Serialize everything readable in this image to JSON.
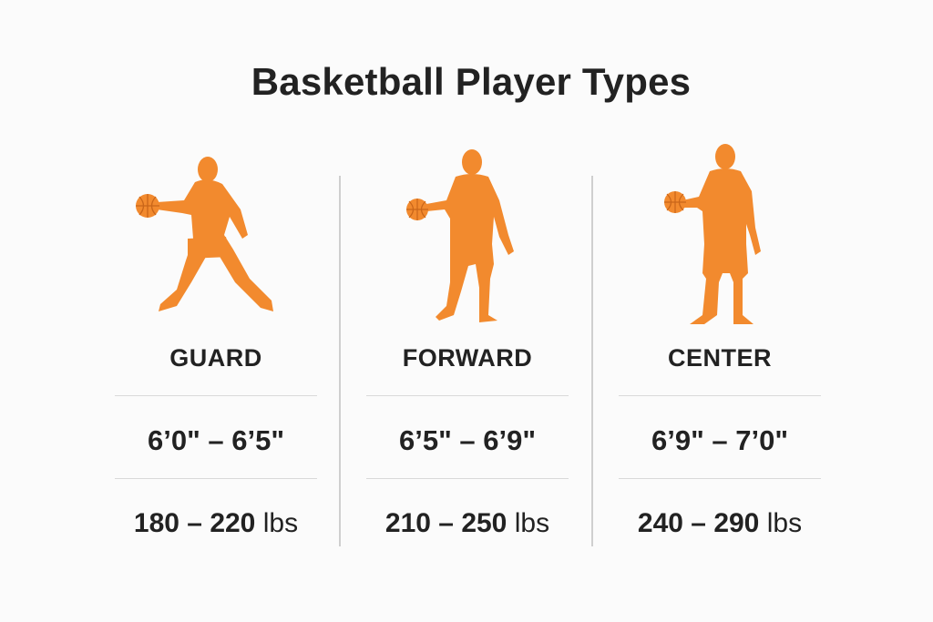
{
  "title": "Basketball Player Types",
  "colors": {
    "silhouette": "#f28a2e",
    "text": "#222222",
    "divider": "#cfcfcf"
  },
  "positions": [
    {
      "name": "GUARD",
      "height_range": "6’0\" – 6’5\"",
      "weight_range": "180 – 220",
      "weight_unit": "lbs",
      "icon": "dribbling-player-icon"
    },
    {
      "name": "FORWARD",
      "height_range": "6’5\" – 6’9\"",
      "weight_range": "210 – 250",
      "weight_unit": "lbs",
      "icon": "standing-player-icon"
    },
    {
      "name": "CENTER",
      "height_range": "6’9\" – 7’0\"",
      "weight_range": "240 – 290",
      "weight_unit": "lbs",
      "icon": "tall-player-icon"
    }
  ]
}
